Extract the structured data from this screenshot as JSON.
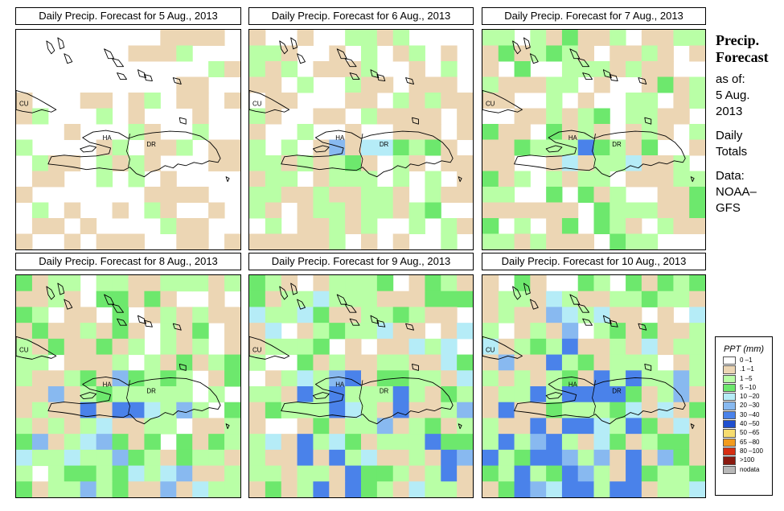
{
  "panels": [
    {
      "title": "Daily Precip. Forecast for  5 Aug., 2013",
      "day_index": 0
    },
    {
      "title": "Daily Precip. Forecast for  6 Aug., 2013",
      "day_index": 1
    },
    {
      "title": "Daily Precip. Forecast for  7 Aug., 2013",
      "day_index": 2
    },
    {
      "title": "Daily Precip. Forecast for  8 Aug., 2013",
      "day_index": 3
    },
    {
      "title": "Daily Precip. Forecast for  9 Aug., 2013",
      "day_index": 4
    },
    {
      "title": "Daily Precip. Forecast for  10 Aug., 2013",
      "day_index": 5
    }
  ],
  "map_labels": {
    "cuba": "CU",
    "haiti": "HA",
    "dominican_republic": "DR"
  },
  "side_info": {
    "title_line1": "Precip.",
    "title_line2": "Forecast",
    "as_of_label": "as of:",
    "as_of_date_line1": "5 Aug.",
    "as_of_date_line2": "2013",
    "totals_line1": "Daily",
    "totals_line2": "Totals",
    "data_label": "Data:",
    "data_source_line1": "NOAA–",
    "data_source_line2": "GFS"
  },
  "legend": {
    "title": "PPT (mm)",
    "items": [
      {
        "label": "0 –1",
        "color": "#ffffff"
      },
      {
        "label": ".1 –1",
        "color": "#ecd6b4"
      },
      {
        "label": "1 –5",
        "color": "#b9ffa6"
      },
      {
        "label": "5 –10",
        "color": "#6de86d"
      },
      {
        "label": "10 –20",
        "color": "#b5ecf7"
      },
      {
        "label": "20 –30",
        "color": "#88b9f0"
      },
      {
        "label": "30 –40",
        "color": "#4a82ea"
      },
      {
        "label": "40 –50",
        "color": "#1f4fcf"
      },
      {
        "label": "50 –65",
        "color": "#f6dc70"
      },
      {
        "label": "65 –80",
        "color": "#f29b1e"
      },
      {
        "label": "80 –100",
        "color": "#d62e12"
      },
      {
        "label": ">100",
        "color": "#8a1a10"
      },
      {
        "label": "nodata",
        "color": "#b8b8b8"
      }
    ]
  }
}
